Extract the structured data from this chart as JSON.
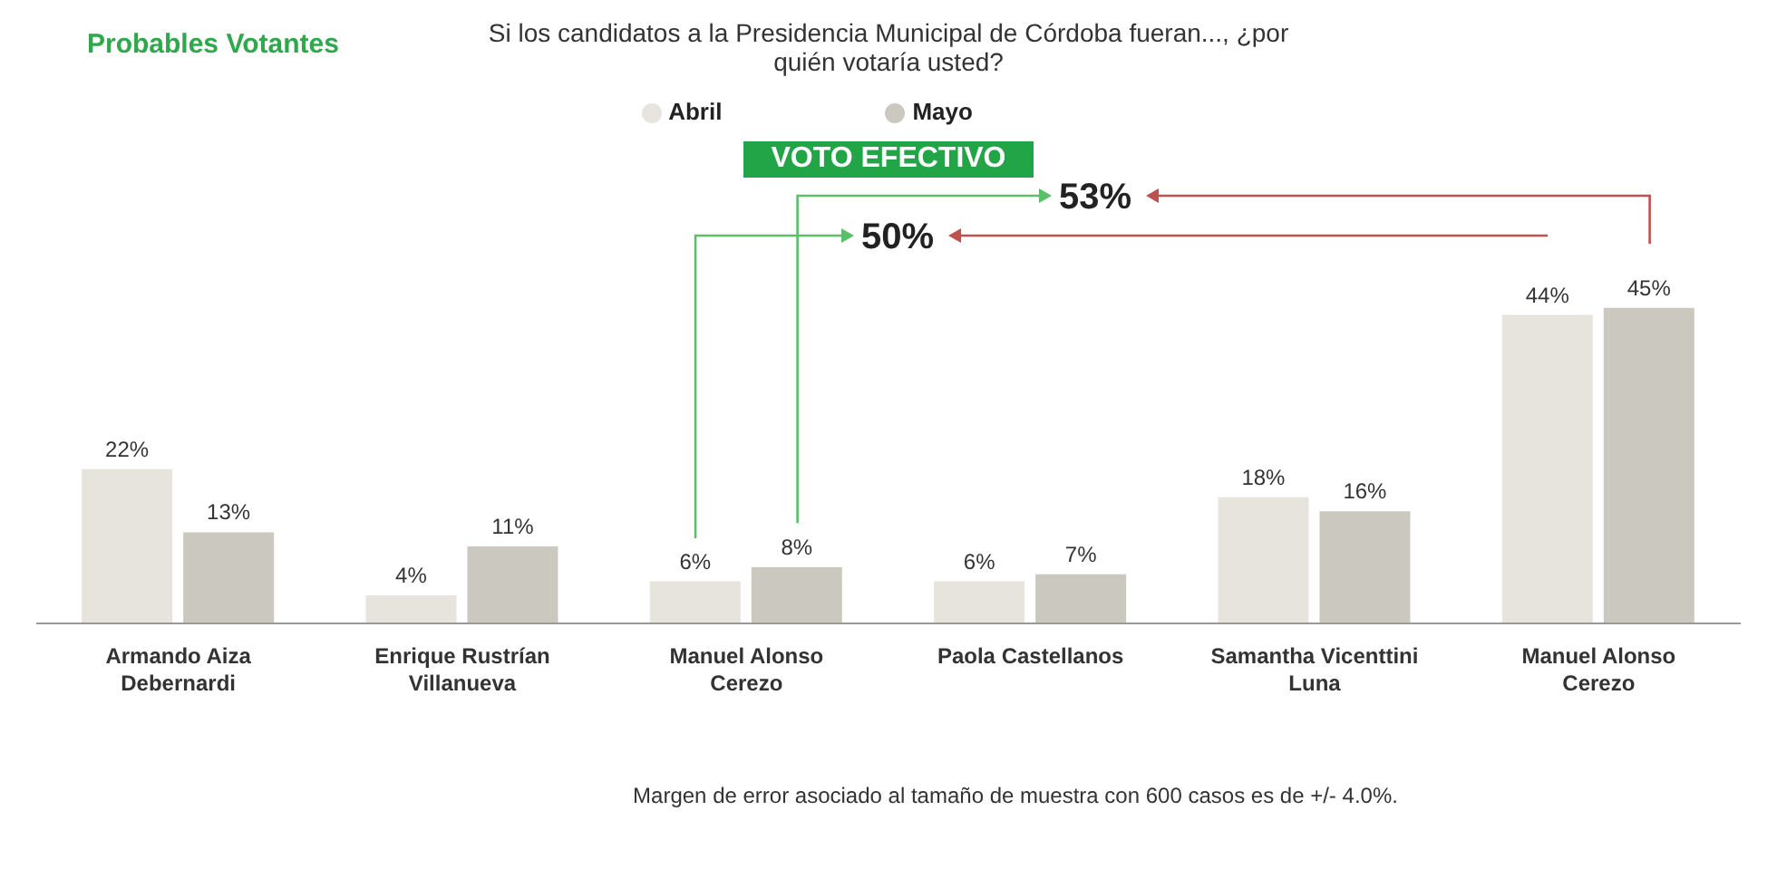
{
  "chart_data": {
    "type": "bar",
    "title": "Si los candidatos a la Presidencia Municipal de Córdoba fueran..., ¿por quién votaría usted?",
    "subtitle": "Probables Votantes",
    "categories": [
      "Armando Aiza Debernardi",
      "Enrique Rustrían Villanueva",
      "Manuel Alonso Cerezo",
      "Paola Castellanos",
      "Samantha Vicenttini Luna",
      "Manuel Alonso Cerezo"
    ],
    "series": [
      {
        "name": "Abril",
        "color": "#e6e4dc",
        "values": [
          22,
          4,
          6,
          6,
          18,
          44
        ],
        "value_labels": [
          "22%",
          "4%",
          "6%",
          "6%",
          "18%",
          "44%"
        ]
      },
      {
        "name": "Mayo",
        "color": "#cbc8bf",
        "values": [
          13,
          11,
          8,
          7,
          16,
          45
        ],
        "value_labels": [
          "13%",
          "11%",
          "8%",
          "7%",
          "16%",
          "45%"
        ]
      }
    ],
    "legend": "top",
    "annotations": [
      "VOTO EFECTIVO",
      "50%",
      "53%",
      "Margen de error asociado al tamaño de muestra con 600 casos es de +/- 4.0%."
    ]
  }
}
